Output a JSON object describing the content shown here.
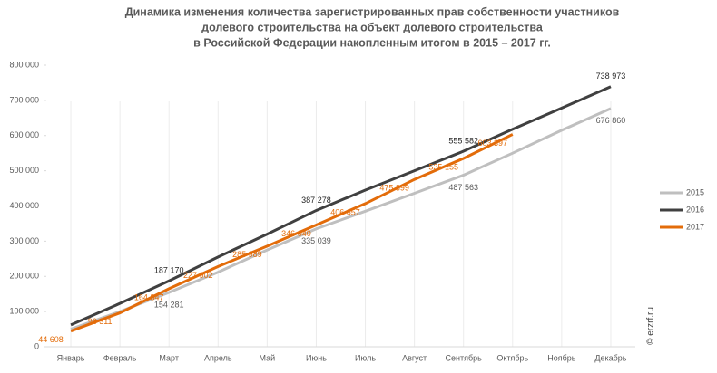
{
  "chart_data": {
    "type": "line",
    "title": [
      "Динамика изменения количества зарегистрированных прав собственности участников",
      "долевого строительства на объект долевого строительства",
      "в Российской Федерации накопленным итогом в 2015 – 2017 гг."
    ],
    "categories": [
      "Январь",
      "Февраль",
      "Март",
      "Апрель",
      "Май",
      "Июнь",
      "Июль",
      "Август",
      "Сентябрь",
      "Октябрь",
      "Ноябрь",
      "Декабрь"
    ],
    "series": [
      {
        "name": "2015",
        "color": "#bfbfbf",
        "values": [
          50000,
          100000,
          154281,
          212000,
          275000,
          335039,
          385000,
          436000,
          487563,
          550000,
          615000,
          676860
        ],
        "value_labels": [
          null,
          null,
          "154 281",
          null,
          null,
          "335 039",
          null,
          null,
          "487 563",
          null,
          null,
          "676 860"
        ]
      },
      {
        "name": "2016",
        "color": "#404040",
        "values": [
          62000,
          123000,
          187170,
          255000,
          320000,
          387278,
          445000,
          500000,
          555582,
          618000,
          678000,
          738973
        ],
        "value_labels": [
          null,
          null,
          "187 170",
          null,
          null,
          "387 278",
          null,
          null,
          "555 582",
          null,
          null,
          "738 973"
        ]
      },
      {
        "name": "2017",
        "color": "#e36c0a",
        "values": [
          44608,
          96311,
          164847,
          227902,
          285989,
          346040,
          406657,
          475399,
          535155,
          603397,
          null,
          null
        ],
        "value_labels": [
          "44 608",
          "96 311",
          "164 847",
          "227 902",
          "285 989",
          "346 040",
          "406 657",
          "475 399",
          "535 155",
          "603 397",
          null,
          null
        ]
      }
    ],
    "ylim": [
      0,
      800000
    ],
    "yticks": [
      0,
      {
        "value": 100000,
        "label": "100 000"
      },
      {
        "value": 200000,
        "label": "200 000"
      },
      {
        "value": 300000,
        "label": "300 000"
      },
      {
        "value": 400000,
        "label": "400 000"
      },
      {
        "value": 500000,
        "label": "500 000"
      },
      {
        "value": 600000,
        "label": "600 000"
      },
      {
        "value": 700000,
        "label": "700 000"
      },
      {
        "value": 800000,
        "label": "800 000"
      }
    ],
    "legend": "right",
    "watermark": "© erzrf.ru"
  }
}
